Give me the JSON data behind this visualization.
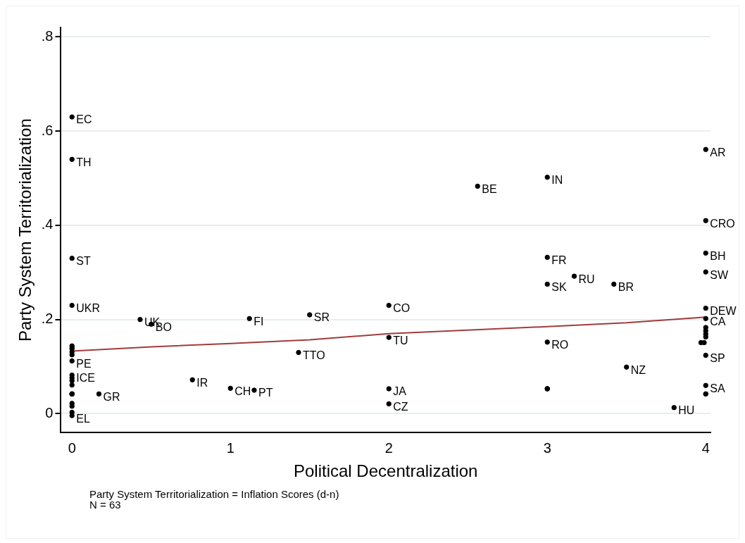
{
  "chart_data": {
    "type": "scatter",
    "xlabel": "Political Decentralization",
    "ylabel": "Party System Territorialization",
    "xlim": [
      -0.07,
      4.03
    ],
    "xticks": [
      0,
      1,
      2,
      3,
      4
    ],
    "ylim": [
      -0.04,
      0.82
    ],
    "yticks": [
      0,
      {
        "value": 0.2,
        "label": ".2"
      },
      {
        "value": 0.4,
        "label": ".4"
      },
      {
        "value": 0.6,
        "label": ".6"
      },
      {
        "value": 0.8,
        "label": ".8"
      }
    ],
    "grid": "y",
    "legend": false,
    "marker": "circle",
    "series": [
      {
        "type": "scatter",
        "color": "#000000",
        "x": [
          0,
          0,
          0,
          0,
          0,
          0,
          0,
          0,
          0,
          0,
          0,
          0,
          0,
          0,
          0,
          0,
          0,
          0,
          0,
          0,
          0,
          0,
          0.17,
          0.43,
          0.5,
          0.76,
          1.0,
          1.15,
          1.12,
          1.5,
          1.43,
          2,
          2,
          2,
          2,
          2.56,
          3,
          3,
          3,
          3.17,
          3.42,
          3,
          3.5,
          3,
          3,
          3,
          3.8,
          4,
          4,
          4,
          4,
          4,
          4,
          4,
          4,
          4,
          4,
          3.97,
          3.99,
          4,
          4,
          4,
          4
        ],
        "values": [
          0.63,
          0.54,
          0.33,
          0.23,
          0.144,
          0.14,
          0.138,
          0.131,
          0.125,
          0.112,
          0.082,
          0.076,
          0.07,
          0.061,
          0.042,
          0.042,
          0.042,
          0.042,
          0.022,
          0.016,
          0.003,
          -0.004,
          0.042,
          0.2,
          0.19,
          0.072,
          0.054,
          0.05,
          0.202,
          0.21,
          0.13,
          0.23,
          0.162,
          0.053,
          0.021,
          0.483,
          0.502,
          0.332,
          0.275,
          0.292,
          0.275,
          0.152,
          0.099,
          0.053,
          0.053,
          0.053,
          0.013,
          0.561,
          0.41,
          0.341,
          0.301,
          0.224,
          0.202,
          0.183,
          0.176,
          0.169,
          0.163,
          0.151,
          0.151,
          0.124,
          0.06,
          0.042,
          0.042
        ]
      },
      {
        "type": "line",
        "color": "#a03c3c",
        "marker": "none",
        "x": [
          0,
          0.5,
          1,
          1.5,
          2,
          3,
          3.5,
          4
        ],
        "values": [
          0.133,
          0.142,
          0.149,
          0.157,
          0.17,
          0.185,
          0.193,
          0.205
        ]
      }
    ],
    "annotations": [
      {
        "text": "EC",
        "x": 0,
        "y": 0.63
      },
      {
        "text": "TH",
        "x": 0,
        "y": 0.54
      },
      {
        "text": "ST",
        "x": 0,
        "y": 0.33
      },
      {
        "text": "UKR",
        "x": 0,
        "y": 0.23
      },
      {
        "text": "PE",
        "x": 0,
        "y": 0.112
      },
      {
        "text": "ICE",
        "x": 0,
        "y": 0.082
      },
      {
        "text": "EL",
        "x": 0,
        "y": -0.004
      },
      {
        "text": "GR",
        "x": 0.17,
        "y": 0.042
      },
      {
        "text": "UK",
        "x": 0.43,
        "y": 0.2
      },
      {
        "text": "BO",
        "x": 0.5,
        "y": 0.19
      },
      {
        "text": "IR",
        "x": 0.76,
        "y": 0.072
      },
      {
        "text": "CH",
        "x": 1.0,
        "y": 0.054
      },
      {
        "text": "PT",
        "x": 1.15,
        "y": 0.05
      },
      {
        "text": "FI",
        "x": 1.12,
        "y": 0.202
      },
      {
        "text": "SR",
        "x": 1.5,
        "y": 0.21
      },
      {
        "text": "TTO",
        "x": 1.43,
        "y": 0.13
      },
      {
        "text": "CO",
        "x": 2,
        "y": 0.23
      },
      {
        "text": "TU",
        "x": 2,
        "y": 0.162
      },
      {
        "text": "JA",
        "x": 2,
        "y": 0.053
      },
      {
        "text": "CZ",
        "x": 2,
        "y": 0.021
      },
      {
        "text": "BE",
        "x": 2.56,
        "y": 0.483
      },
      {
        "text": "IN",
        "x": 3,
        "y": 0.502
      },
      {
        "text": "FR",
        "x": 3,
        "y": 0.332
      },
      {
        "text": "SK",
        "x": 3,
        "y": 0.275
      },
      {
        "text": "RU",
        "x": 3.17,
        "y": 0.292
      },
      {
        "text": "BR",
        "x": 3.42,
        "y": 0.275
      },
      {
        "text": "RO",
        "x": 3,
        "y": 0.152
      },
      {
        "text": "NZ",
        "x": 3.5,
        "y": 0.099
      },
      {
        "text": "HU",
        "x": 3.8,
        "y": 0.013
      },
      {
        "text": "AR",
        "x": 4,
        "y": 0.561
      },
      {
        "text": "CRO",
        "x": 4,
        "y": 0.41
      },
      {
        "text": "BH",
        "x": 4,
        "y": 0.341
      },
      {
        "text": "SW",
        "x": 4,
        "y": 0.301
      },
      {
        "text": "DEW",
        "x": 4,
        "y": 0.224
      },
      {
        "text": "CA",
        "x": 4,
        "y": 0.202
      },
      {
        "text": "SP",
        "x": 4,
        "y": 0.124
      },
      {
        "text": "SA",
        "x": 4,
        "y": 0.06
      },
      "Party System Territorialization = Inflation Scores (d-n)",
      "N = 63"
    ]
  }
}
